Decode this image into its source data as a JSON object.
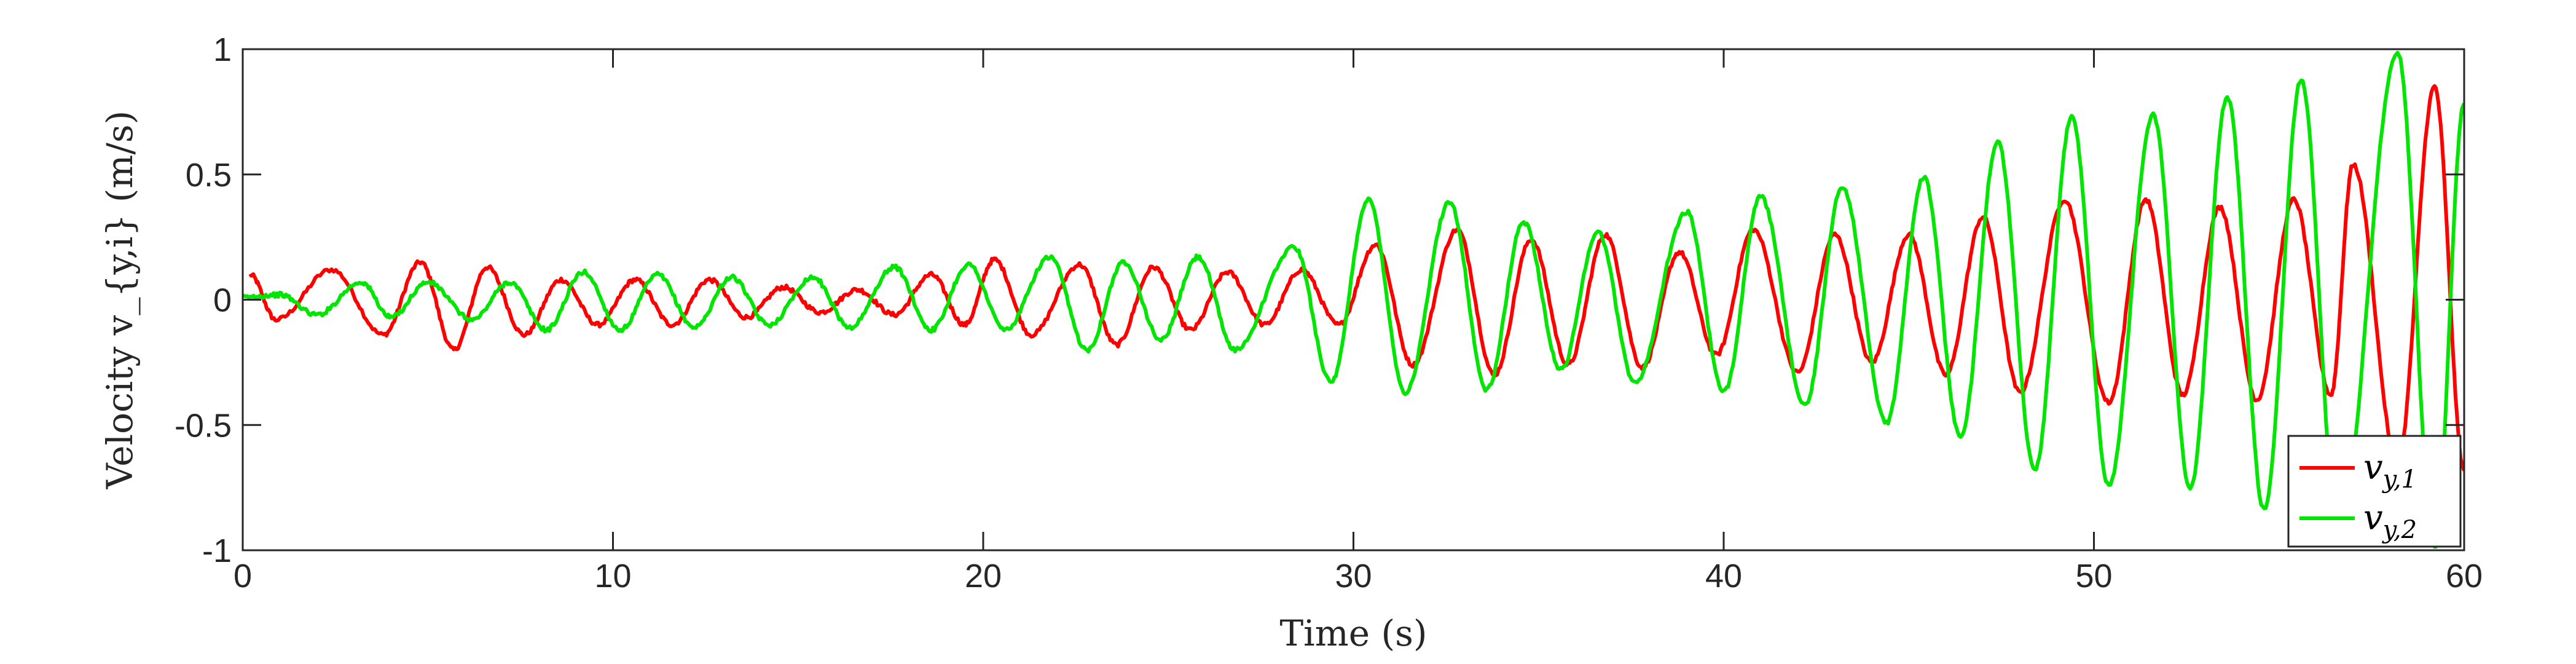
{
  "chart_data": {
    "type": "line",
    "xlabel": "Time (s)",
    "ylabel": "Velocity v_{y,i} (m/s)",
    "xlim": [
      0,
      60
    ],
    "ylim": [
      -1,
      1
    ],
    "xticks": [
      "0",
      "10",
      "20",
      "30",
      "40",
      "50",
      "60"
    ],
    "yticks": [
      "-1",
      "-0.5",
      "0",
      "0.5",
      "1"
    ],
    "xtick_values": [
      0,
      10,
      20,
      30,
      40,
      50,
      60
    ],
    "ytick_values": [
      -1,
      -0.5,
      0,
      0.5,
      1
    ],
    "grid": false,
    "legend_position": "bottom-right",
    "series": [
      {
        "name": "v_{y,1}",
        "legend": {
          "base": "v",
          "sub": "y,1"
        },
        "color": "#ff0000",
        "peaks": [
          [
            0.2,
            0.1
          ],
          [
            0.9,
            -0.08
          ],
          [
            2.4,
            0.12
          ],
          [
            3.8,
            -0.14
          ],
          [
            4.8,
            0.15
          ],
          [
            5.7,
            -0.2
          ],
          [
            6.6,
            0.13
          ],
          [
            7.6,
            -0.14
          ],
          [
            8.6,
            0.08
          ],
          [
            9.6,
            -0.1
          ],
          [
            10.6,
            0.08
          ],
          [
            11.6,
            -0.1
          ],
          [
            12.6,
            0.08
          ],
          [
            13.6,
            -0.07
          ],
          [
            14.6,
            0.05
          ],
          [
            15.6,
            -0.05
          ],
          [
            16.6,
            0.04
          ],
          [
            17.6,
            -0.06
          ],
          [
            18.6,
            0.1
          ],
          [
            19.5,
            -0.1
          ],
          [
            20.3,
            0.16
          ],
          [
            21.3,
            -0.14
          ],
          [
            22.6,
            0.14
          ],
          [
            23.6,
            -0.18
          ],
          [
            24.6,
            0.13
          ],
          [
            25.6,
            -0.12
          ],
          [
            26.6,
            0.11
          ],
          [
            27.6,
            -0.1
          ],
          [
            28.6,
            0.12
          ],
          [
            29.6,
            -0.1
          ],
          [
            30.6,
            0.22
          ],
          [
            31.6,
            -0.26
          ],
          [
            32.8,
            0.28
          ],
          [
            33.8,
            -0.3
          ],
          [
            34.8,
            0.24
          ],
          [
            35.8,
            -0.26
          ],
          [
            36.8,
            0.26
          ],
          [
            37.8,
            -0.27
          ],
          [
            38.8,
            0.19
          ],
          [
            39.8,
            -0.22
          ],
          [
            40.8,
            0.28
          ],
          [
            42.0,
            -0.29
          ],
          [
            43.0,
            0.26
          ],
          [
            44.0,
            -0.25
          ],
          [
            45.0,
            0.26
          ],
          [
            46.0,
            -0.3
          ],
          [
            47.0,
            0.33
          ],
          [
            48.0,
            -0.37
          ],
          [
            49.2,
            0.4
          ],
          [
            50.4,
            -0.41
          ],
          [
            51.4,
            0.4
          ],
          [
            52.4,
            -0.38
          ],
          [
            53.4,
            0.37
          ],
          [
            54.4,
            -0.4
          ],
          [
            55.4,
            0.4
          ],
          [
            56.4,
            -0.38
          ],
          [
            57.0,
            0.54
          ],
          [
            58.2,
            -0.65
          ],
          [
            59.2,
            0.85
          ],
          [
            60.0,
            -0.68
          ]
        ]
      },
      {
        "name": "v_{y,2}",
        "legend": {
          "base": "v",
          "sub": "y,2"
        },
        "color": "#00e600",
        "peaks": [
          [
            0.0,
            0.01
          ],
          [
            1.0,
            0.02
          ],
          [
            2.0,
            -0.06
          ],
          [
            3.2,
            0.07
          ],
          [
            4.0,
            -0.07
          ],
          [
            5.0,
            0.07
          ],
          [
            6.2,
            -0.08
          ],
          [
            7.2,
            0.07
          ],
          [
            8.2,
            -0.12
          ],
          [
            9.2,
            0.11
          ],
          [
            10.2,
            -0.12
          ],
          [
            11.2,
            0.1
          ],
          [
            12.2,
            -0.11
          ],
          [
            13.2,
            0.09
          ],
          [
            14.2,
            -0.1
          ],
          [
            15.4,
            0.09
          ],
          [
            16.4,
            -0.11
          ],
          [
            17.6,
            0.13
          ],
          [
            18.6,
            -0.12
          ],
          [
            19.6,
            0.14
          ],
          [
            20.6,
            -0.12
          ],
          [
            21.8,
            0.17
          ],
          [
            22.8,
            -0.2
          ],
          [
            23.8,
            0.15
          ],
          [
            24.8,
            -0.16
          ],
          [
            25.8,
            0.17
          ],
          [
            26.8,
            -0.2
          ],
          [
            28.4,
            0.21
          ],
          [
            29.4,
            -0.33
          ],
          [
            30.4,
            0.4
          ],
          [
            31.4,
            -0.37
          ],
          [
            32.6,
            0.39
          ],
          [
            33.6,
            -0.36
          ],
          [
            34.6,
            0.31
          ],
          [
            35.6,
            -0.28
          ],
          [
            36.6,
            0.27
          ],
          [
            37.6,
            -0.33
          ],
          [
            39.0,
            0.35
          ],
          [
            40.0,
            -0.37
          ],
          [
            41.0,
            0.41
          ],
          [
            42.2,
            -0.42
          ],
          [
            43.2,
            0.45
          ],
          [
            44.4,
            -0.49
          ],
          [
            45.4,
            0.49
          ],
          [
            46.4,
            -0.55
          ],
          [
            47.4,
            0.63
          ],
          [
            48.4,
            -0.68
          ],
          [
            49.4,
            0.73
          ],
          [
            50.4,
            -0.74
          ],
          [
            51.6,
            0.74
          ],
          [
            52.6,
            -0.75
          ],
          [
            53.6,
            0.81
          ],
          [
            54.6,
            -0.84
          ],
          [
            55.6,
            0.88
          ],
          [
            56.6,
            -0.93
          ],
          [
            58.2,
            0.99
          ],
          [
            59.2,
            -0.99
          ],
          [
            60.0,
            0.78
          ]
        ]
      }
    ]
  }
}
